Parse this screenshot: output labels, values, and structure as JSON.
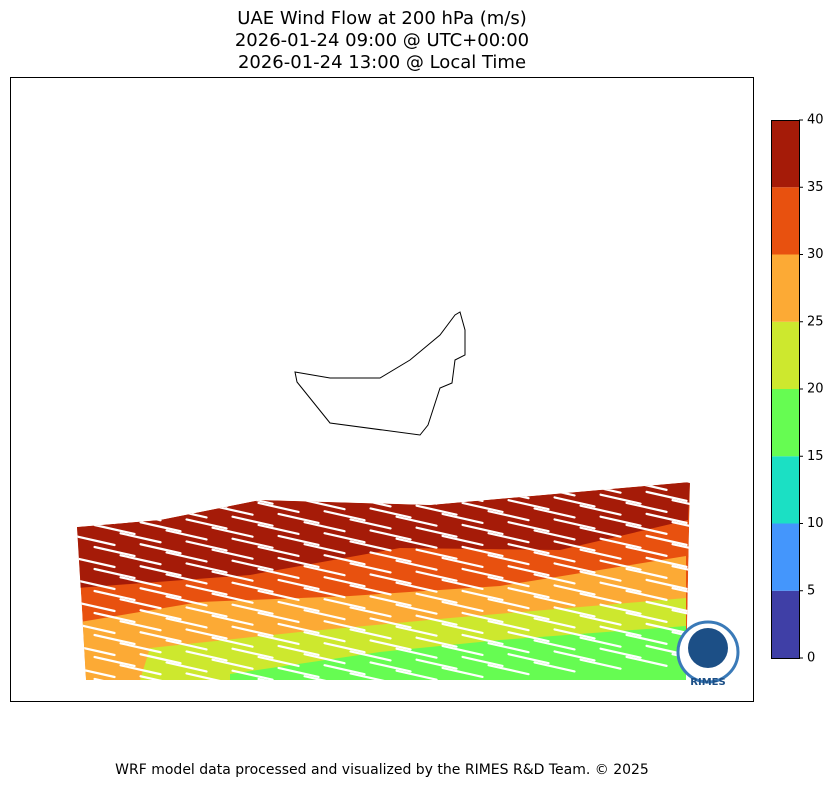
{
  "title": [
    "UAE Wind Flow at 200 hPa (m/s)",
    "2026-01-24 09:00 @ UTC+00:00",
    "2026-01-24 13:00 @ Local Time"
  ],
  "colorbar": {
    "lim": [
      0,
      40
    ],
    "ticks": [
      0,
      5,
      10,
      15,
      20,
      25,
      30,
      35,
      40
    ],
    "colors": [
      "#3f3fa6",
      "#4496fc",
      "#1be0c4",
      "#66fc52",
      "#cde82e",
      "#fcaa35",
      "#e8510f",
      "#a51b08"
    ]
  },
  "logo": "RIMES",
  "footer": "WRF model data processed and visualized by the RIMES R&D Team. © 2025"
}
